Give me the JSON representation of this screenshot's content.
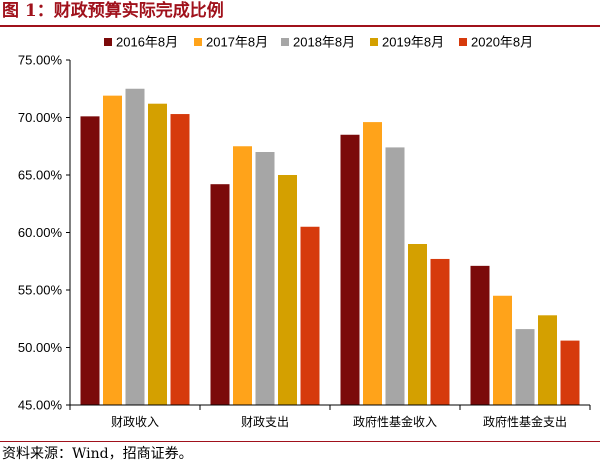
{
  "figure": {
    "title": "图 1：财政预算实际完成比例",
    "source": "资料来源：Wind，招商证券。"
  },
  "chart_data": {
    "type": "bar",
    "categories": [
      "财政收入",
      "财政支出",
      "政府性基金收入",
      "政府性基金支出"
    ],
    "series": [
      {
        "name": "2016年8月",
        "color": "#7b0a0a",
        "values": [
          70.1,
          64.2,
          68.5,
          57.1
        ]
      },
      {
        "name": "2017年8月",
        "color": "#ffa31a",
        "values": [
          71.9,
          67.5,
          69.6,
          54.5
        ]
      },
      {
        "name": "2018年8月",
        "color": "#a6a6a6",
        "values": [
          72.5,
          67.0,
          67.4,
          51.6
        ]
      },
      {
        "name": "2019年8月",
        "color": "#d4a000",
        "values": [
          71.2,
          65.0,
          59.0,
          52.8
        ]
      },
      {
        "name": "2020年8月",
        "color": "#d63a0c",
        "values": [
          70.3,
          60.5,
          57.7,
          50.6
        ]
      }
    ],
    "y_ticks": [
      "45.00%",
      "50.00%",
      "55.00%",
      "60.00%",
      "65.00%",
      "70.00%",
      "75.00%"
    ],
    "ylim": [
      45,
      75
    ],
    "legend_position": "top",
    "grid": false
  }
}
